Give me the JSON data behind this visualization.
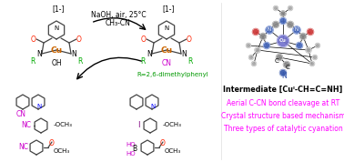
{
  "bg_color": "#ffffff",
  "intermediate_label": "Intermediate [Cuᴵ-CH=C=NH]",
  "bullet1": "Aerial C-CN bond cleavage at RT",
  "bullet2": "Crystal structure based mechanism",
  "bullet3": "Three types of catalytic cyanation",
  "bullet_color": "#ff00ff",
  "reaction_cond1": "NaOH, air, 25°C",
  "reaction_cond2": "CH₃-CN",
  "r_label": "R=2,6-dimethylphenyl",
  "charge": "1-",
  "cn_color": "#cc00cc",
  "r_color": "#00aa00",
  "o_color": "#ff2200",
  "n_color": "#0000ff",
  "cu_color": "#cc6600",
  "nc_color": "#cc00cc",
  "i_color": "#800080",
  "ho_color": "#cc00cc",
  "bond_lw": 0.9
}
